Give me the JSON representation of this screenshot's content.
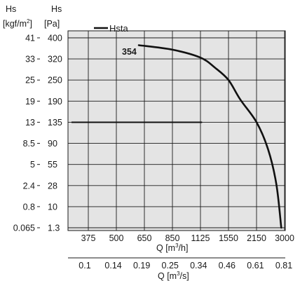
{
  "chart_data": {
    "type": "line",
    "legend": {
      "label": "Hsta",
      "placement": "top-left"
    },
    "left_axis_kgf": {
      "unit_line1": "Hs",
      "unit_line2_prefix": "[kgf/m",
      "unit_line2_sup": "2",
      "unit_line2_suffix": "]",
      "ticks": [
        "41",
        "33",
        "25",
        "19",
        "13",
        "8.5",
        "5",
        "2.4",
        "0.8",
        "0.065"
      ]
    },
    "left_axis_pa": {
      "unit_line1": "Hs",
      "unit_line2": "[Pa]",
      "ticks": [
        "400",
        "320",
        "250",
        "190",
        "135",
        "90",
        "55",
        "28",
        "10",
        "1.3"
      ]
    },
    "x_axis_m3h": {
      "ticks": [
        "375",
        "500",
        "650",
        "850",
        "1125",
        "1550",
        "2150",
        "3000"
      ],
      "label_prefix": "Q [m",
      "label_sup": "3",
      "label_suffix": "/h]"
    },
    "x_axis_m3s": {
      "ticks": [
        "0.1",
        "0.14",
        "0.19",
        "0.25",
        "0.34",
        "0.46",
        "0.61",
        "0.81"
      ],
      "label_prefix": "Q [m",
      "label_sup": "3",
      "label_suffix": "/s]"
    },
    "grid": true,
    "series": [
      {
        "name": "Hsta",
        "points": [
          {
            "q_m3h": 620,
            "hs_pa": 372
          },
          {
            "q_m3h": 850,
            "hs_pa": 355
          },
          {
            "q_m3h": 1125,
            "hs_pa": 325
          },
          {
            "q_m3h": 1350,
            "hs_pa": 290
          },
          {
            "q_m3h": 1550,
            "hs_pa": 250
          },
          {
            "q_m3h": 1800,
            "hs_pa": 195
          },
          {
            "q_m3h": 2150,
            "hs_pa": 135
          },
          {
            "q_m3h": 2500,
            "hs_pa": 80
          },
          {
            "q_m3h": 2750,
            "hs_pa": 30
          },
          {
            "q_m3h": 2900,
            "hs_pa": 1.3
          }
        ]
      }
    ],
    "annotations": [
      {
        "text": "354",
        "q_m3h": 620,
        "hs_pa": 355
      }
    ],
    "reference_lines": [
      {
        "hs_pa": 135,
        "q_from_m3h": 300,
        "q_to_m3h": 1150
      }
    ]
  }
}
